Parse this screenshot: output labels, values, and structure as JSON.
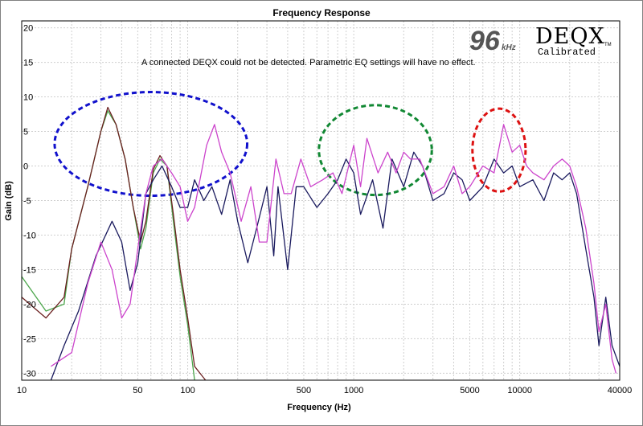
{
  "window": {
    "title": "Frequency Response"
  },
  "logo": {
    "rate_number": "96",
    "rate_unit": "kHz",
    "brand": "DEQX",
    "sub": "Calibrated",
    "tm": "TM"
  },
  "message": "A connected DEQX could not be detected.  Parametric EQ settings will have no effect.",
  "chart_data": {
    "type": "line",
    "title": "Frequency Response",
    "xlabel": "Frequency (Hz)",
    "ylabel": "Gain (dB)",
    "xscale": "log",
    "xlim": [
      10,
      40000
    ],
    "ylim": [
      -31,
      21
    ],
    "grid": true,
    "x_ticks": [
      10,
      50,
      100,
      500,
      1000,
      5000,
      10000,
      40000
    ],
    "x_tick_labels": [
      "10",
      "50",
      "100",
      "500",
      "1000",
      "5000",
      "10000",
      "40000"
    ],
    "y_ticks": [
      20,
      15,
      10,
      5,
      0,
      -5,
      -10,
      -15,
      -20,
      -25,
      -30
    ],
    "y_tick_labels": [
      "20",
      "15",
      "10",
      "5",
      "0",
      "-5",
      "-10",
      "-15",
      "-20",
      "-25",
      "-30"
    ],
    "colors": {
      "navy": "#1a1a5e",
      "magenta": "#cc44cc",
      "brown": "#6b2020",
      "green": "#4ca64c"
    },
    "series": [
      {
        "color": "#4ca64c",
        "points": [
          [
            10,
            -16
          ],
          [
            14,
            -21
          ],
          [
            18,
            -20
          ],
          [
            20,
            -12
          ],
          [
            25,
            -3
          ],
          [
            30,
            5
          ],
          [
            33,
            8
          ],
          [
            37,
            6
          ],
          [
            42,
            1
          ],
          [
            47,
            -6
          ],
          [
            52,
            -12
          ],
          [
            56,
            -9
          ],
          [
            62,
            -1
          ],
          [
            68,
            1
          ],
          [
            75,
            0
          ],
          [
            82,
            -8
          ],
          [
            90,
            -16
          ],
          [
            100,
            -23
          ],
          [
            110,
            -31
          ]
        ]
      },
      {
        "color": "#6b2020",
        "points": [
          [
            10,
            -19
          ],
          [
            14,
            -22
          ],
          [
            18,
            -19
          ],
          [
            20,
            -12
          ],
          [
            25,
            -3
          ],
          [
            30,
            5
          ],
          [
            33,
            8.5
          ],
          [
            37,
            6
          ],
          [
            42,
            1
          ],
          [
            47,
            -6
          ],
          [
            52,
            -11
          ],
          [
            56,
            -8
          ],
          [
            62,
            -0.5
          ],
          [
            68,
            1.5
          ],
          [
            75,
            0
          ],
          [
            82,
            -7
          ],
          [
            90,
            -15
          ],
          [
            100,
            -22
          ],
          [
            110,
            -29
          ],
          [
            128,
            -31
          ]
        ]
      },
      {
        "color": "#1a1a5e",
        "points": [
          [
            15,
            -31
          ],
          [
            18,
            -26
          ],
          [
            22,
            -21
          ],
          [
            28,
            -13
          ],
          [
            35,
            -8
          ],
          [
            40,
            -11
          ],
          [
            45,
            -18
          ],
          [
            50,
            -14
          ],
          [
            56,
            -4
          ],
          [
            62,
            -2
          ],
          [
            70,
            0
          ],
          [
            80,
            -3
          ],
          [
            90,
            -6
          ],
          [
            100,
            -6
          ],
          [
            110,
            -2
          ],
          [
            125,
            -5
          ],
          [
            140,
            -3
          ],
          [
            160,
            -7
          ],
          [
            180,
            -2
          ],
          [
            200,
            -8
          ],
          [
            230,
            -14
          ],
          [
            260,
            -9
          ],
          [
            300,
            -3
          ],
          [
            330,
            -13
          ],
          [
            350,
            -3
          ],
          [
            400,
            -15
          ],
          [
            450,
            -3
          ],
          [
            500,
            -3
          ],
          [
            600,
            -6
          ],
          [
            700,
            -4
          ],
          [
            800,
            -2
          ],
          [
            900,
            1
          ],
          [
            1000,
            -1
          ],
          [
            1100,
            -7
          ],
          [
            1300,
            -2
          ],
          [
            1500,
            -9
          ],
          [
            1700,
            1
          ],
          [
            2000,
            -3
          ],
          [
            2300,
            2
          ],
          [
            2600,
            0
          ],
          [
            3000,
            -5
          ],
          [
            3500,
            -4
          ],
          [
            4000,
            -1
          ],
          [
            4500,
            -2
          ],
          [
            5000,
            -5
          ],
          [
            6000,
            -3
          ],
          [
            7000,
            1
          ],
          [
            8000,
            -1
          ],
          [
            9000,
            0
          ],
          [
            10000,
            -3
          ],
          [
            12000,
            -2
          ],
          [
            14000,
            -5
          ],
          [
            16000,
            -1
          ],
          [
            18000,
            -2
          ],
          [
            20000,
            -1
          ],
          [
            22000,
            -4
          ],
          [
            25000,
            -12
          ],
          [
            28000,
            -19
          ],
          [
            30000,
            -26
          ],
          [
            33000,
            -19
          ],
          [
            36000,
            -26
          ],
          [
            40000,
            -29
          ]
        ]
      },
      {
        "color": "#cc44cc",
        "points": [
          [
            15,
            -29
          ],
          [
            20,
            -27
          ],
          [
            25,
            -17
          ],
          [
            30,
            -11
          ],
          [
            35,
            -15
          ],
          [
            40,
            -22
          ],
          [
            45,
            -20
          ],
          [
            50,
            -12
          ],
          [
            56,
            -4
          ],
          [
            62,
            0
          ],
          [
            70,
            1
          ],
          [
            80,
            -1
          ],
          [
            90,
            -3
          ],
          [
            100,
            -8
          ],
          [
            110,
            -6
          ],
          [
            130,
            3
          ],
          [
            145,
            6
          ],
          [
            160,
            2
          ],
          [
            180,
            -1
          ],
          [
            210,
            -8
          ],
          [
            240,
            -3
          ],
          [
            270,
            -11
          ],
          [
            300,
            -11
          ],
          [
            340,
            1
          ],
          [
            380,
            -4
          ],
          [
            420,
            -4
          ],
          [
            480,
            1
          ],
          [
            550,
            -3
          ],
          [
            650,
            -2
          ],
          [
            750,
            -1
          ],
          [
            850,
            -4
          ],
          [
            1000,
            3
          ],
          [
            1100,
            -3
          ],
          [
            1200,
            4
          ],
          [
            1400,
            -1
          ],
          [
            1600,
            2
          ],
          [
            1800,
            -1
          ],
          [
            2000,
            2
          ],
          [
            2200,
            1
          ],
          [
            2500,
            1
          ],
          [
            3000,
            -4
          ],
          [
            3500,
            -3
          ],
          [
            4000,
            0
          ],
          [
            4500,
            -4
          ],
          [
            5000,
            -3
          ],
          [
            6000,
            0
          ],
          [
            7000,
            -1
          ],
          [
            8000,
            6
          ],
          [
            9000,
            2
          ],
          [
            10000,
            3
          ],
          [
            11000,
            0
          ],
          [
            12000,
            -1
          ],
          [
            14000,
            -2
          ],
          [
            16000,
            0
          ],
          [
            18000,
            1
          ],
          [
            20000,
            0
          ],
          [
            22000,
            -3
          ],
          [
            25000,
            -9
          ],
          [
            28000,
            -17
          ],
          [
            30000,
            -24
          ],
          [
            33000,
            -20
          ],
          [
            36000,
            -28
          ],
          [
            38000,
            -30
          ]
        ]
      }
    ],
    "annotations": [
      {
        "shape": "ellipse",
        "color": "#1111cc",
        "fx": 60,
        "fy": 3.2,
        "rx_decades": 0.58,
        "ry_db": 7.5
      },
      {
        "shape": "ellipse",
        "color": "#118833",
        "fx": 1350,
        "fy": 2.3,
        "rx_decades": 0.34,
        "ry_db": 6.5
      },
      {
        "shape": "ellipse",
        "color": "#dd1111",
        "fx": 7500,
        "fy": 2.3,
        "rx_decades": 0.16,
        "ry_db": 6.0
      }
    ]
  }
}
